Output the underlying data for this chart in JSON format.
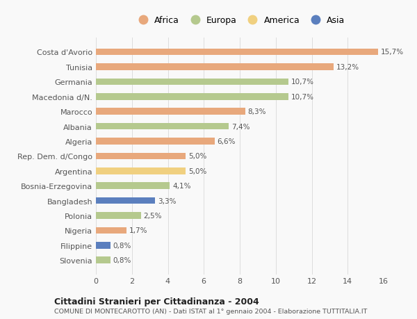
{
  "categories": [
    "Slovenia",
    "Filippine",
    "Nigeria",
    "Polonia",
    "Bangladesh",
    "Bosnia-Erzegovina",
    "Argentina",
    "Rep. Dem. d/Congo",
    "Algeria",
    "Albania",
    "Marocco",
    "Macedonia d/N.",
    "Germania",
    "Tunisia",
    "Costa d'Avorio"
  ],
  "values": [
    0.8,
    0.8,
    1.7,
    2.5,
    3.3,
    4.1,
    5.0,
    5.0,
    6.6,
    7.4,
    8.3,
    10.7,
    10.7,
    13.2,
    15.7
  ],
  "colors": [
    "#b5c98e",
    "#5b7fbe",
    "#e8a87c",
    "#b5c98e",
    "#5b7fbe",
    "#b5c98e",
    "#f0d080",
    "#e8a87c",
    "#e8a87c",
    "#b5c98e",
    "#e8a87c",
    "#b5c98e",
    "#b5c98e",
    "#e8a87c",
    "#e8a87c"
  ],
  "labels": [
    "0,8%",
    "0,8%",
    "1,7%",
    "2,5%",
    "3,3%",
    "4,1%",
    "5,0%",
    "5,0%",
    "6,6%",
    "7,4%",
    "8,3%",
    "10,7%",
    "10,7%",
    "13,2%",
    "15,7%"
  ],
  "legend_labels": [
    "Africa",
    "Europa",
    "America",
    "Asia"
  ],
  "legend_colors": [
    "#e8a87c",
    "#b5c98e",
    "#f0d080",
    "#5b7fbe"
  ],
  "title": "Cittadini Stranieri per Cittadinanza - 2004",
  "subtitle": "COMUNE DI MONTECAROTTO (AN) - Dati ISTAT al 1° gennaio 2004 - Elaborazione TUTTITALIA.IT",
  "xlim": [
    0,
    16
  ],
  "xticks": [
    0,
    2,
    4,
    6,
    8,
    10,
    12,
    14,
    16
  ],
  "background_color": "#f9f9f9",
  "grid_color": "#dddddd",
  "bar_height": 0.45
}
